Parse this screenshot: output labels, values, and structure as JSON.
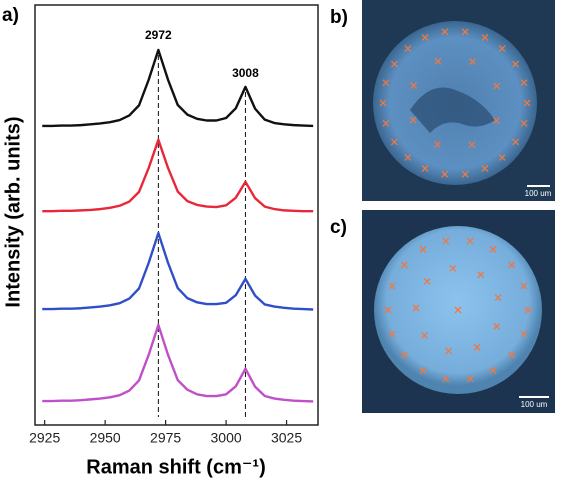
{
  "chart_data": {
    "type": "line",
    "x_label": "Raman shift (cm⁻¹)",
    "y_label": "Intensity (arb. units)",
    "xlim": [
      2921,
      3038
    ],
    "xticks": [
      2925,
      2950,
      2975,
      3000,
      3025
    ],
    "ylim": [
      0,
      100
    ],
    "peaks": [
      2972,
      3008
    ],
    "x": [
      2924,
      2928,
      2932,
      2936,
      2940,
      2944,
      2948,
      2952,
      2956,
      2960,
      2964,
      2968,
      2972,
      2976,
      2980,
      2984,
      2988,
      2992,
      2996,
      3000,
      3004,
      3008,
      3012,
      3016,
      3020,
      3024,
      3028,
      3032,
      3036
    ],
    "series": [
      {
        "color": "#111111",
        "values": [
          71.2,
          71.2,
          71.3,
          71.3,
          71.4,
          71.6,
          71.8,
          72.1,
          72.6,
          73.7,
          76.1,
          82.2,
          89.3,
          82.2,
          76.2,
          73.9,
          72.9,
          72.5,
          72.5,
          73.1,
          75.4,
          80.5,
          75.3,
          72.7,
          71.9,
          71.6,
          71.4,
          71.3,
          71.2
        ]
      },
      {
        "color": "#e8283a",
        "values": [
          50.9,
          50.9,
          51.0,
          51.0,
          51.1,
          51.2,
          51.4,
          51.7,
          52.2,
          53.2,
          55.5,
          61.2,
          67.9,
          61.2,
          55.6,
          53.3,
          52.4,
          52.0,
          51.9,
          52.3,
          54.1,
          57.9,
          54.0,
          52.0,
          51.4,
          51.1,
          51.0,
          50.9,
          50.9
        ]
      },
      {
        "color": "#2f4fc8",
        "values": [
          27.6,
          27.6,
          27.7,
          27.7,
          27.8,
          28.0,
          28.2,
          28.5,
          29.0,
          30.1,
          32.5,
          38.6,
          45.7,
          38.6,
          32.6,
          30.2,
          29.2,
          28.8,
          28.8,
          29.1,
          30.9,
          34.8,
          30.8,
          28.7,
          28.2,
          27.9,
          27.7,
          27.6,
          27.5
        ]
      },
      {
        "color": "#c050c8",
        "values": [
          5.7,
          5.7,
          5.8,
          5.8,
          5.9,
          6.1,
          6.3,
          6.6,
          7.1,
          8.2,
          10.6,
          16.7,
          23.8,
          16.7,
          10.7,
          8.4,
          7.3,
          6.9,
          6.9,
          7.3,
          9.2,
          13.4,
          9.1,
          6.9,
          6.3,
          6.0,
          5.8,
          5.7,
          5.6
        ]
      }
    ]
  },
  "panel_labels": [
    "a)",
    "b)",
    "c)"
  ],
  "scale_bar_labels": [
    "100 um",
    "100 um"
  ]
}
